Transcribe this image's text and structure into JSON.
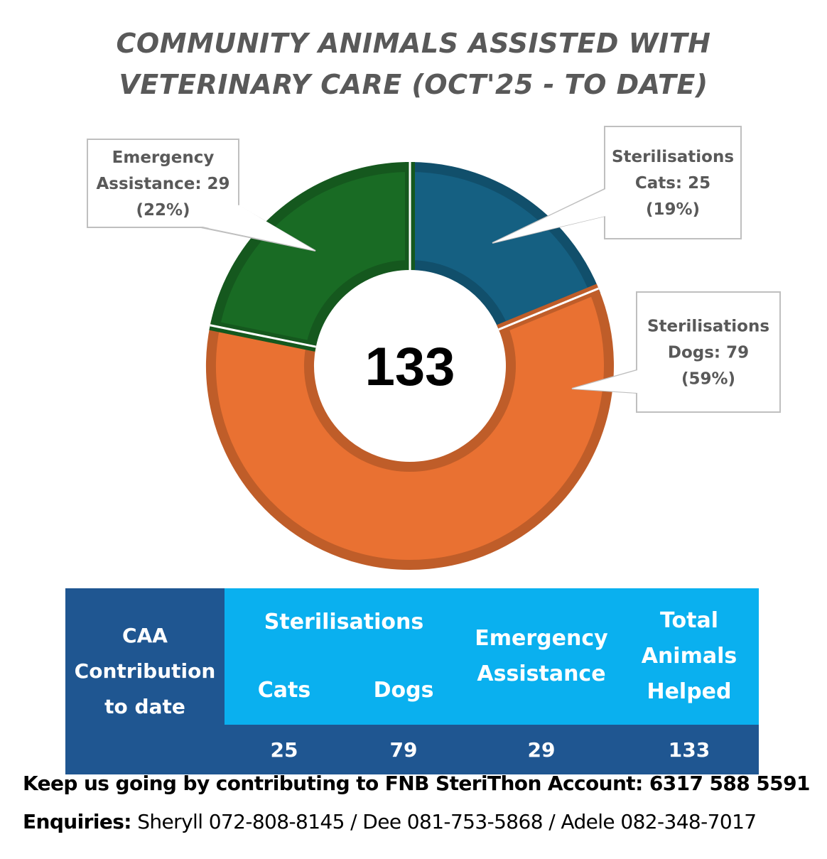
{
  "title": {
    "line1": "COMMUNITY ANIMALS ASSISTED WITH",
    "line2": "VETERINARY CARE (OCT'25 - TO DATE)"
  },
  "chart_data": {
    "type": "doughnut",
    "center_label": "133",
    "slices": [
      {
        "name": "Sterilisations Cats",
        "value": 25,
        "percent": "19%",
        "color": "#156082",
        "label_lines": [
          "Sterilisations",
          "Cats: 25",
          "(19%)"
        ]
      },
      {
        "name": "Sterilisations Dogs",
        "value": 79,
        "percent": "59%",
        "color": "#e97132",
        "label_lines": [
          "Sterilisations",
          "Dogs: 79",
          "(59%)"
        ]
      },
      {
        "name": "Emergency Assistance",
        "value": 29,
        "percent": "22%",
        "color": "#196b24",
        "label_lines": [
          "Emergency",
          "Assistance: 29",
          "(22%)"
        ]
      }
    ]
  },
  "table": {
    "row_label_lines": [
      "CAA",
      "Contribution",
      "to date"
    ],
    "group_header": "Sterilisations",
    "cats_header": "Cats",
    "dogs_header": "Dogs",
    "emergency_header_lines": [
      "Emergency",
      "Assistance"
    ],
    "total_header_lines": [
      "Total",
      "Animals",
      "Helped"
    ],
    "values": {
      "cats": "25",
      "dogs": "79",
      "emergency": "29",
      "total": "133"
    },
    "colors": {
      "dark": "#1f5691",
      "light": "#0ab0ef"
    }
  },
  "footer": {
    "line1": "Keep us going by contributing to FNB SteriThon Account: 6317 588 5591",
    "enquiries_label": "Enquiries:",
    "enquiries_text": " Sheryll 072-808-8145 / Dee 081-753-5868 / Adele 082-348-7017"
  }
}
